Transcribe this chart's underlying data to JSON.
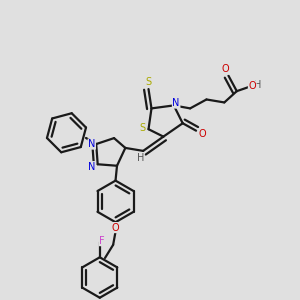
{
  "background_color": "#e0e0e0",
  "bond_color": "#1a1a1a",
  "bond_width": 1.6,
  "figsize": [
    3.0,
    3.0
  ],
  "dpi": 100,
  "atom_colors": {
    "N": "#0000dd",
    "O": "#cc0000",
    "S": "#aaaa00",
    "F": "#cc44cc",
    "H": "#555555",
    "C": "#1a1a1a"
  },
  "font_size": 7.0
}
